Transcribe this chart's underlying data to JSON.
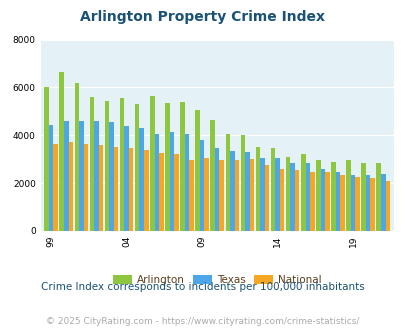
{
  "title": "Arlington Property Crime Index",
  "subtitle": "Crime Index corresponds to incidents per 100,000 inhabitants",
  "footer": "© 2025 CityRating.com - https://www.cityrating.com/crime-statistics/",
  "years": [
    1999,
    2000,
    2001,
    2002,
    2003,
    2004,
    2005,
    2006,
    2007,
    2008,
    2009,
    2010,
    2011,
    2012,
    2013,
    2014,
    2015,
    2016,
    2017,
    2018,
    2019,
    2020,
    2021
  ],
  "arlington": [
    6000,
    6650,
    6200,
    5600,
    5450,
    5550,
    5300,
    5650,
    5350,
    5400,
    5050,
    4650,
    4050,
    4000,
    3500,
    3450,
    3100,
    3200,
    2950,
    2900,
    2950,
    2850,
    2850
  ],
  "texas": [
    4450,
    4600,
    4600,
    4600,
    4550,
    4400,
    4300,
    4050,
    4150,
    4050,
    3800,
    3450,
    3350,
    3300,
    3050,
    3050,
    2850,
    2850,
    2600,
    2450,
    2350,
    2350,
    2400
  ],
  "national": [
    3650,
    3700,
    3650,
    3600,
    3500,
    3450,
    3400,
    3250,
    3200,
    2950,
    3050,
    2950,
    2950,
    3000,
    2750,
    2600,
    2550,
    2450,
    2450,
    2350,
    2250,
    2200,
    2100
  ],
  "bar_colors": {
    "arlington": "#8dc63f",
    "texas": "#4da6e8",
    "national": "#f5a623"
  },
  "ylim": [
    0,
    8000
  ],
  "yticks": [
    0,
    2000,
    4000,
    6000,
    8000
  ],
  "xtick_years": [
    1999,
    2004,
    2009,
    2014,
    2019
  ],
  "xtick_labels": [
    "99",
    "04",
    "09",
    "14",
    "19"
  ],
  "bg_color": "#e4f2f7",
  "title_color": "#1a5276",
  "subtitle_color": "#1a5276",
  "footer_color": "#aaaaaa",
  "title_fontsize": 10,
  "subtitle_fontsize": 7.5,
  "footer_fontsize": 6.5,
  "legend_labels": [
    "Arlington",
    "Texas",
    "National"
  ],
  "legend_text_color": "#5a3e1b"
}
